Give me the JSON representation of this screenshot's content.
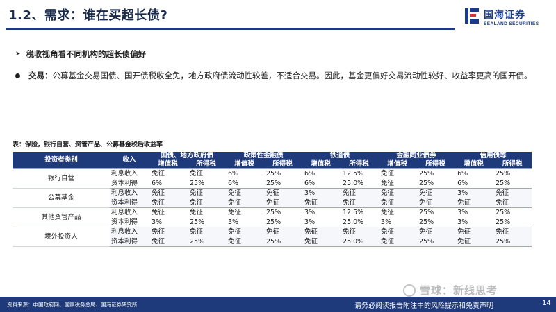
{
  "header": {
    "title": "1.2、需求：谁在买超长债?",
    "logo_cn": "国海证券",
    "logo_en": "SEALAND SECURITIES"
  },
  "bullets": {
    "heading": "税收视角看不同机构的超长债偏好",
    "point_label": "交易：",
    "point_text": "公募基金交易国债、国开债税收全免，地方政府债流动性较差，不适合交易。因此，基金更偏好交易流动性较好、收益率更高的国开债。"
  },
  "table": {
    "caption": "表：保险，银行自营、资管产品、公募基金税后收益率",
    "head_investor": "投资者类别",
    "head_income": "收入",
    "groups": [
      "国债、地方政府债",
      "政策性金融债",
      "铁道债",
      "金融同业债券",
      "信用债等"
    ],
    "sub_vat": "增值税",
    "sub_cit": "所得税",
    "rows": [
      {
        "cat": "银行自营",
        "income": "利息收入",
        "vals": [
          "免征",
          "免征",
          "6%",
          "25%",
          "6%",
          "12.5%",
          "免征",
          "25%",
          "6%",
          "25%"
        ]
      },
      {
        "cat": "",
        "income": "资本利得",
        "vals": [
          "6%",
          "25%",
          "6%",
          "25%",
          "6%",
          "25.0%",
          "免征",
          "25%",
          "6%",
          "25%"
        ]
      },
      {
        "cat": "公募基金",
        "income": "利息收入",
        "vals": [
          "免征",
          "免征",
          "免征",
          "免征",
          "3%",
          "免征",
          "免征",
          "免征",
          "3%",
          "免征"
        ]
      },
      {
        "cat": "",
        "income": "资本利得",
        "vals": [
          "免征",
          "免征",
          "免征",
          "免征",
          "免征",
          "免征",
          "免征",
          "免征",
          "免征",
          "免征"
        ]
      },
      {
        "cat": "其他资管产品",
        "income": "利息收入",
        "vals": [
          "免征",
          "免征",
          "免征",
          "25%",
          "3%",
          "12.5%",
          "免征",
          "25%",
          "3%",
          "25%"
        ]
      },
      {
        "cat": "",
        "income": "资本利得",
        "vals": [
          "3%",
          "25%",
          "3%",
          "25%",
          "3%",
          "25.0%",
          "3%",
          "25%",
          "3%",
          "25%"
        ]
      },
      {
        "cat": "境外投资人",
        "income": "利息收入",
        "vals": [
          "免征",
          "免征",
          "免征",
          "免征",
          "免征",
          "免征",
          "免征",
          "免征",
          "免征",
          "免征"
        ]
      },
      {
        "cat": "",
        "income": "资本利得",
        "vals": [
          "免征",
          "25%",
          "免征",
          "25%",
          "免征",
          "25.0%",
          "免征",
          "25%",
          "免征",
          "25%"
        ]
      }
    ]
  },
  "footer": {
    "source": "资料来源：中国政府网、国家税务总局、国海证券研究所",
    "note": "请务必阅读报告附注中的风险提示和免责声明",
    "page": "14"
  },
  "watermark": {
    "text": "雪球：新线思考"
  },
  "colors": {
    "brand_blue": "#1f3a7a",
    "logo_blue": "#1a3b8c"
  }
}
